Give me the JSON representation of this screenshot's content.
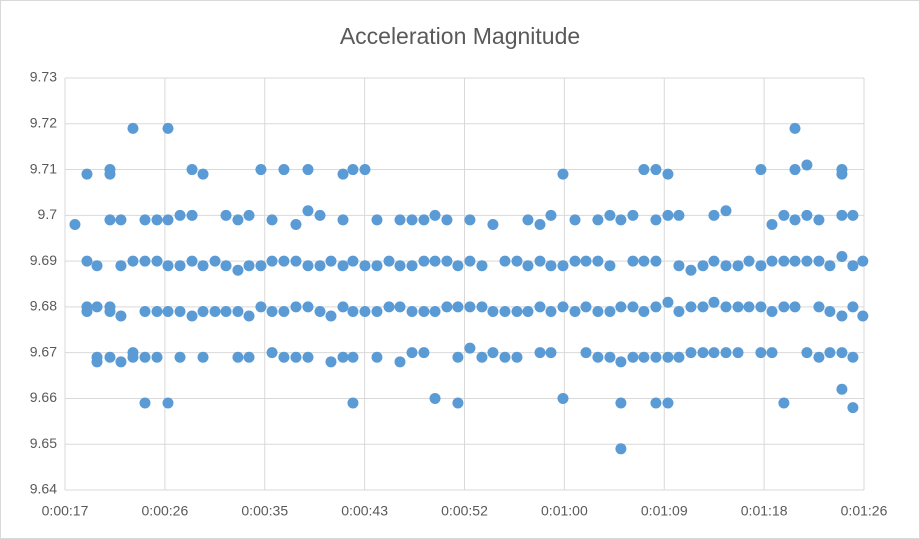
{
  "chart_data": {
    "type": "scatter",
    "title": "Acceleration Magnitude",
    "color": "#5b9bd5",
    "grid": true,
    "xlim": [
      17.28,
      86.4
    ],
    "xticks": [
      {
        "value": 17.28,
        "label": "0:00:17"
      },
      {
        "value": 25.92,
        "label": "0:00:26"
      },
      {
        "value": 34.56,
        "label": "0:00:35"
      },
      {
        "value": 43.2,
        "label": "0:00:43"
      },
      {
        "value": 51.84,
        "label": "0:00:52"
      },
      {
        "value": 60.48,
        "label": "0:01:00"
      },
      {
        "value": 69.12,
        "label": "0:01:09"
      },
      {
        "value": 77.76,
        "label": "0:01:18"
      },
      {
        "value": 86.4,
        "label": "0:01:26"
      }
    ],
    "ylim": [
      9.64,
      9.73
    ],
    "yticks": [
      9.64,
      9.65,
      9.66,
      9.67,
      9.68,
      9.69,
      9.7,
      9.71,
      9.72,
      9.73
    ],
    "x": [
      18.14,
      19.18,
      19.18,
      19.18,
      19.18,
      20.05,
      20.05,
      20.05,
      20.05,
      21.17,
      21.17,
      21.17,
      21.17,
      21.17,
      21.17,
      22.12,
      22.12,
      22.12,
      22.12,
      23.16,
      23.16,
      23.16,
      23.16,
      24.2,
      24.2,
      24.2,
      24.2,
      24.2,
      25.24,
      25.24,
      25.24,
      25.24,
      26.19,
      26.19,
      26.19,
      26.19,
      26.19,
      27.23,
      27.23,
      27.23,
      27.23,
      28.27,
      28.27,
      28.27,
      28.27,
      29.22,
      29.22,
      29.22,
      29.22,
      30.26,
      30.26,
      31.21,
      31.21,
      31.21,
      32.24,
      32.24,
      32.24,
      32.24,
      33.2,
      33.2,
      33.2,
      33.2,
      34.23,
      34.23,
      34.23,
      35.19,
      35.19,
      35.19,
      35.19,
      36.22,
      36.22,
      36.22,
      36.22,
      37.26,
      37.26,
      37.26,
      37.26,
      38.3,
      38.3,
      38.3,
      38.3,
      38.3,
      39.34,
      39.34,
      39.34,
      40.29,
      40.29,
      40.29,
      41.33,
      41.33,
      41.33,
      41.33,
      41.33,
      42.19,
      42.19,
      42.19,
      42.19,
      42.19,
      43.23,
      43.23,
      43.23,
      44.27,
      44.27,
      44.27,
      44.27,
      45.31,
      45.31,
      46.26,
      46.26,
      46.26,
      46.26,
      47.3,
      47.3,
      47.3,
      47.3,
      48.33,
      48.33,
      48.33,
      48.33,
      49.29,
      49.29,
      49.29,
      49.29,
      50.32,
      50.32,
      50.32,
      51.27,
      51.27,
      51.27,
      51.27,
      52.31,
      52.31,
      52.31,
      52.31,
      53.35,
      53.35,
      53.35,
      54.3,
      54.3,
      54.3,
      55.34,
      55.34,
      55.34,
      56.38,
      56.38,
      56.38,
      57.33,
      57.33,
      57.33,
      58.37,
      58.37,
      58.37,
      58.37,
      59.32,
      59.32,
      59.32,
      59.32,
      60.36,
      60.36,
      60.36,
      60.36,
      61.4,
      61.4,
      61.4,
      62.35,
      62.35,
      62.35,
      63.38,
      63.38,
      63.38,
      63.38,
      64.42,
      64.42,
      64.42,
      64.42,
      65.37,
      65.37,
      65.37,
      65.37,
      65.37,
      66.41,
      66.41,
      66.41,
      66.41,
      67.36,
      67.36,
      67.36,
      67.36,
      68.4,
      68.4,
      68.4,
      68.4,
      68.4,
      68.4,
      69.44,
      69.44,
      69.44,
      69.44,
      69.44,
      70.39,
      70.39,
      70.39,
      70.39,
      71.43,
      71.43,
      71.43,
      72.47,
      72.47,
      72.47,
      73.42,
      73.42,
      73.42,
      73.42,
      74.46,
      74.46,
      74.46,
      74.46,
      75.5,
      75.5,
      75.5,
      76.45,
      76.45,
      77.48,
      77.48,
      77.48,
      77.48,
      78.44,
      78.44,
      78.44,
      78.44,
      79.47,
      79.47,
      79.47,
      79.47,
      80.43,
      80.43,
      80.43,
      80.43,
      80.43,
      81.46,
      81.46,
      81.46,
      81.46,
      82.5,
      82.5,
      82.5,
      82.5,
      83.45,
      83.45,
      83.45,
      84.49,
      84.49,
      84.49,
      84.49,
      84.49,
      84.49,
      84.49,
      85.44,
      85.44,
      85.44,
      85.44,
      85.44,
      86.3,
      86.3
    ],
    "values": [
      9.698,
      9.709,
      9.69,
      9.68,
      9.679,
      9.689,
      9.68,
      9.669,
      9.668,
      9.71,
      9.709,
      9.699,
      9.68,
      9.679,
      9.669,
      9.699,
      9.689,
      9.678,
      9.668,
      9.719,
      9.69,
      9.67,
      9.669,
      9.699,
      9.69,
      9.679,
      9.669,
      9.659,
      9.699,
      9.69,
      9.679,
      9.669,
      9.719,
      9.699,
      9.689,
      9.679,
      9.659,
      9.7,
      9.689,
      9.679,
      9.669,
      9.71,
      9.7,
      9.69,
      9.678,
      9.709,
      9.689,
      9.679,
      9.669,
      9.69,
      9.679,
      9.7,
      9.689,
      9.679,
      9.699,
      9.688,
      9.679,
      9.669,
      9.7,
      9.689,
      9.678,
      9.669,
      9.71,
      9.689,
      9.68,
      9.699,
      9.69,
      9.679,
      9.67,
      9.71,
      9.69,
      9.679,
      9.669,
      9.698,
      9.69,
      9.68,
      9.669,
      9.71,
      9.701,
      9.689,
      9.68,
      9.669,
      9.7,
      9.689,
      9.679,
      9.69,
      9.678,
      9.668,
      9.709,
      9.699,
      9.689,
      9.68,
      9.669,
      9.71,
      9.69,
      9.679,
      9.669,
      9.659,
      9.71,
      9.689,
      9.679,
      9.699,
      9.689,
      9.679,
      9.669,
      9.69,
      9.68,
      9.699,
      9.689,
      9.68,
      9.668,
      9.699,
      9.689,
      9.679,
      9.67,
      9.699,
      9.69,
      9.679,
      9.67,
      9.7,
      9.69,
      9.679,
      9.66,
      9.699,
      9.69,
      9.68,
      9.689,
      9.68,
      9.669,
      9.659,
      9.699,
      9.69,
      9.68,
      9.671,
      9.689,
      9.68,
      9.669,
      9.698,
      9.679,
      9.67,
      9.69,
      9.679,
      9.669,
      9.69,
      9.679,
      9.669,
      9.699,
      9.689,
      9.679,
      9.698,
      9.69,
      9.68,
      9.67,
      9.7,
      9.689,
      9.679,
      9.67,
      9.709,
      9.689,
      9.68,
      9.66,
      9.699,
      9.69,
      9.679,
      9.69,
      9.68,
      9.67,
      9.699,
      9.69,
      9.679,
      9.669,
      9.7,
      9.689,
      9.679,
      9.669,
      9.699,
      9.68,
      9.668,
      9.659,
      9.649,
      9.7,
      9.69,
      9.68,
      9.669,
      9.71,
      9.69,
      9.679,
      9.669,
      9.71,
      9.699,
      9.69,
      9.68,
      9.669,
      9.659,
      9.709,
      9.7,
      9.681,
      9.669,
      9.659,
      9.7,
      9.689,
      9.679,
      9.669,
      9.688,
      9.68,
      9.67,
      9.689,
      9.68,
      9.67,
      9.7,
      9.69,
      9.681,
      9.67,
      9.701,
      9.689,
      9.68,
      9.67,
      9.689,
      9.68,
      9.67,
      9.69,
      9.68,
      9.71,
      9.689,
      9.68,
      9.67,
      9.698,
      9.69,
      9.679,
      9.67,
      9.7,
      9.69,
      9.68,
      9.659,
      9.719,
      9.71,
      9.699,
      9.69,
      9.68,
      9.711,
      9.7,
      9.69,
      9.67,
      9.699,
      9.69,
      9.68,
      9.669,
      9.689,
      9.679,
      9.67,
      9.71,
      9.709,
      9.7,
      9.691,
      9.678,
      9.67,
      9.662,
      9.7,
      9.689,
      9.68,
      9.669,
      9.658,
      9.69,
      9.678
    ]
  }
}
